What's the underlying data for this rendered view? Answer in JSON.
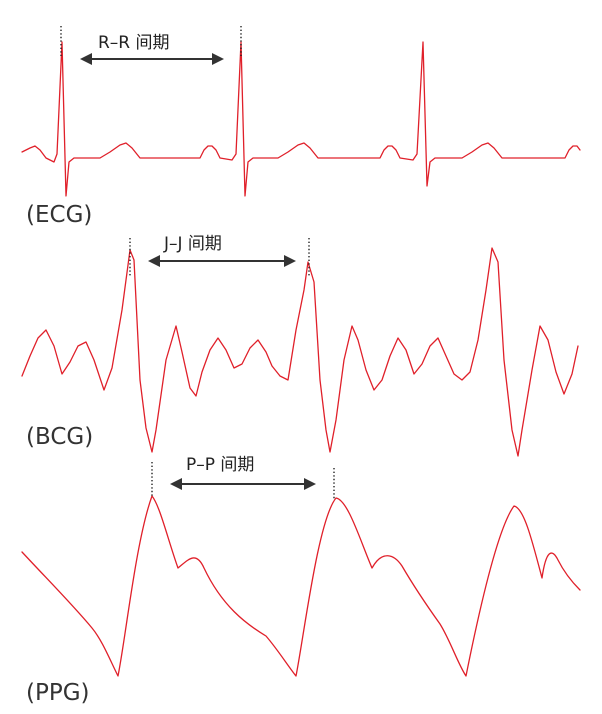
{
  "colors": {
    "waveform": "#e0202a",
    "annotation": "#333333",
    "background": "#ffffff"
  },
  "signals": [
    {
      "id": "ecg",
      "label": "(ECG)",
      "interval_label": "R–R 间期"
    },
    {
      "id": "bcg",
      "label": "(BCG)",
      "interval_label": "J–J 间期"
    },
    {
      "id": "ppg",
      "label": "(PPG)",
      "interval_label": "P–P 间期"
    }
  ]
}
